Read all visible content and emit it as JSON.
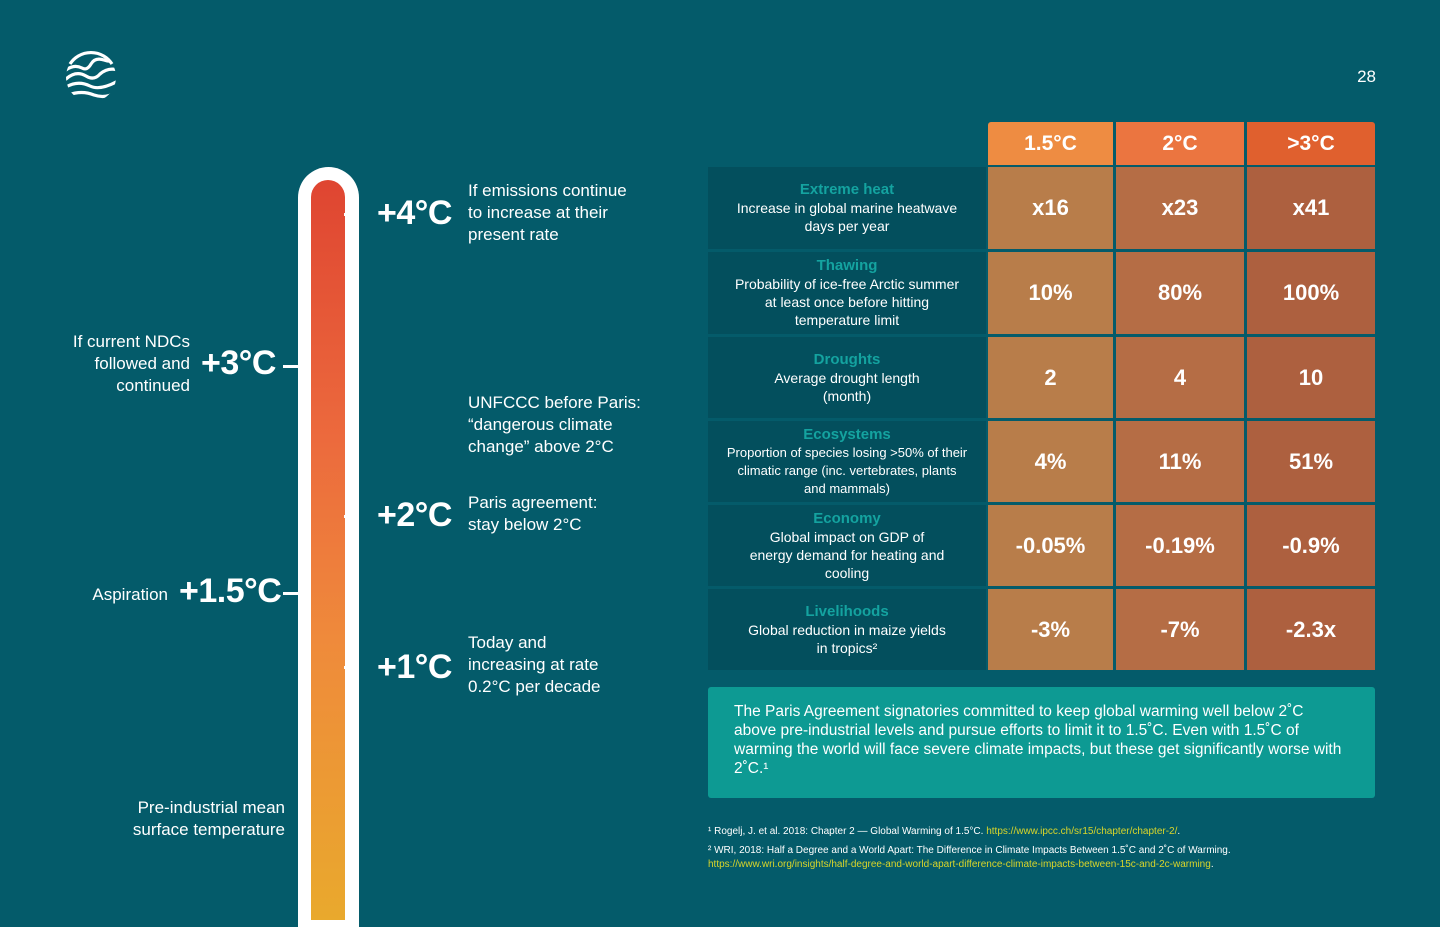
{
  "page_number": "28",
  "thermometer": {
    "left_labels": [
      {
        "temp": "+3°C",
        "text_lines": [
          "If current NDCs",
          "followed and",
          "continued"
        ]
      },
      {
        "temp": "+1.5°C",
        "text_lines": [
          "Aspiration"
        ]
      },
      {
        "temp": "",
        "text_lines": [
          "Pre-industrial mean",
          "surface temperature"
        ]
      }
    ],
    "right_labels": [
      {
        "temp": "+4°C",
        "text_lines": [
          "If emissions continue",
          "to increase at their",
          "present rate"
        ]
      },
      {
        "temp": "",
        "text_lines": [
          "UNFCCC before Paris:",
          "“dangerous climate",
          "change” above 2°C"
        ]
      },
      {
        "temp": "+2°C",
        "text_lines": [
          "Paris agreement:",
          "stay below 2°C"
        ]
      },
      {
        "temp": "+1°C",
        "text_lines": [
          "Today and",
          "increasing at rate",
          "0.2°C per decade"
        ]
      }
    ]
  },
  "table": {
    "headers": [
      "1.5°C",
      "2°C",
      ">3°C"
    ],
    "header_colors": [
      "#ee8c42",
      "#eb7540",
      "#e0602e"
    ],
    "rows": [
      {
        "title": "Extreme heat",
        "subtitle": "Increase in global marine heatwave days per year",
        "values": [
          "x16",
          "x23",
          "x41"
        ]
      },
      {
        "title": "Thawing",
        "subtitle": "Probability of ice-free Arctic summer at least once before hitting temperature limit",
        "values": [
          "10%",
          "80%",
          "100%"
        ]
      },
      {
        "title": "Droughts",
        "subtitle": "Average drought length (month)",
        "values": [
          "2",
          "4",
          "10"
        ]
      },
      {
        "title": "Ecosystems",
        "subtitle": "Proportion of species losing >50% of their climatic range (inc. vertebrates, plants and mammals)",
        "values": [
          "4%",
          "11%",
          "51%"
        ]
      },
      {
        "title": "Economy",
        "subtitle": "Global impact on GDP of energy demand for heating and cooling",
        "values": [
          "-0.05%",
          "-0.19%",
          "-0.9%"
        ]
      },
      {
        "title": "Livelihoods",
        "subtitle": "Global reduction in maize yields in tropics²",
        "values": [
          "-3%",
          "-7%",
          "-2.3x"
        ]
      }
    ]
  },
  "note": "The Paris Agreement signatories committed to keep global warming well below 2˚C above pre-industrial levels and pursue efforts to limit it to 1.5˚C. Even with 1.5˚C of warming the world will face severe climate impacts, but these get significantly worse with 2˚C.¹",
  "footnotes": {
    "f1_text": "¹ Rogelj, J. et al. 2018: Chapter 2 — Global Warming of 1.5°C. ",
    "f1_link": "https://www.ipcc.ch/sr15/chapter/chapter-2/",
    "f1_end": ".",
    "f2_text": "² WRI, 2018: Half a Degree and a World Apart: The Difference in Climate Impacts Between 1.5˚C and 2˚C of Warming.",
    "f2_link": "https://www.wri.org/insights/half-degree-and-world-apart-difference-climate-impacts-between-15c-and-2c-warming",
    "f2_end": "."
  }
}
